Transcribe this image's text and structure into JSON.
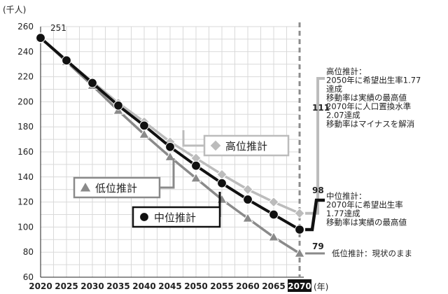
{
  "chart_data": {
    "type": "line",
    "unit_label": "(千人)",
    "x_unit_label": "(年)",
    "x": [
      2020,
      2025,
      2030,
      2035,
      2040,
      2045,
      2050,
      2055,
      2060,
      2065,
      2070
    ],
    "highlight_x": 2070,
    "ylim": [
      60,
      260
    ],
    "yticks": [
      60,
      80,
      100,
      120,
      140,
      160,
      180,
      200,
      220,
      240,
      260
    ],
    "grid": true,
    "start_label": "251",
    "series": [
      {
        "key": "high",
        "name": "高位推計",
        "marker": "diamond",
        "color": "#bcbcbc",
        "values": [
          251,
          233,
          216,
          199,
          184,
          168,
          155,
          142,
          130,
          120,
          111
        ],
        "end_label": "111",
        "note": [
          "高位推計：",
          "2050年に希望出生率1.77",
          "達成",
          "移動率は実績の最高値",
          "2070年に人口置換水準",
          "2.07達成",
          "移動率はマイナスを解消"
        ]
      },
      {
        "key": "mid",
        "name": "中位推計",
        "marker": "circle",
        "color": "#111111",
        "values": [
          251,
          233,
          215,
          197,
          181,
          164,
          149,
          135,
          122,
          110,
          98
        ],
        "end_label": "98",
        "note": [
          "中位推計：",
          "2070年に希望出生率",
          "1.77達成",
          "移動率は実績の最高値"
        ]
      },
      {
        "key": "low",
        "name": "低位推計",
        "marker": "triangle",
        "color": "#8a8a8a",
        "values": [
          251,
          232,
          213,
          193,
          174,
          156,
          139,
          122,
          107,
          92,
          79
        ],
        "end_label": "79",
        "note": [
          "低位推計：現状のまま"
        ]
      }
    ]
  }
}
